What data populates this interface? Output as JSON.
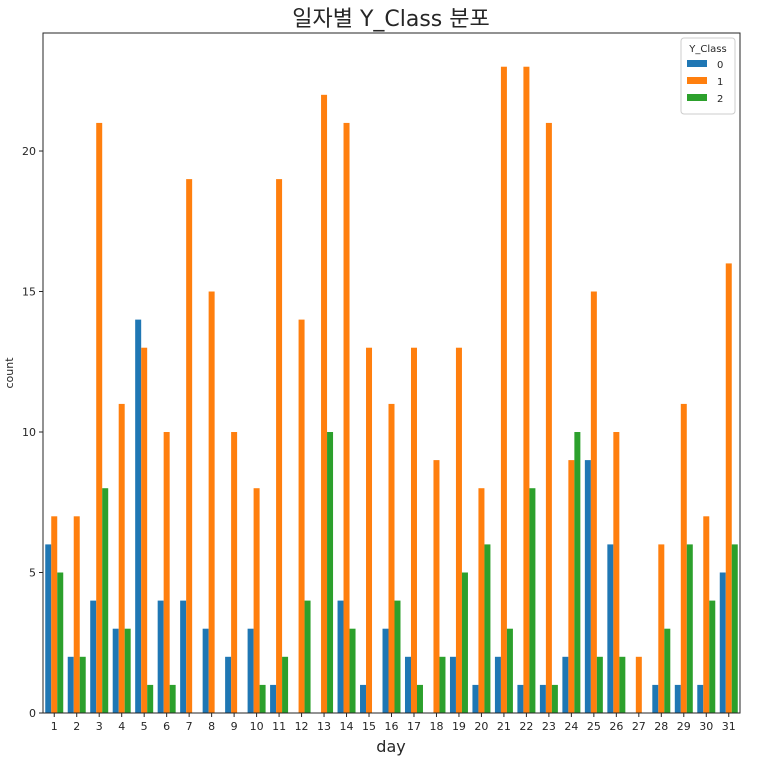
{
  "chart_data": {
    "type": "bar",
    "title": "일자별 Y_Class 분포",
    "xlabel": "day",
    "ylabel": "count",
    "ylim": [
      0,
      24.2
    ],
    "yticks": [
      0,
      5,
      10,
      15,
      20
    ],
    "categories": [
      "1",
      "2",
      "3",
      "4",
      "5",
      "6",
      "7",
      "8",
      "9",
      "10",
      "11",
      "12",
      "13",
      "14",
      "15",
      "16",
      "17",
      "18",
      "19",
      "20",
      "21",
      "22",
      "23",
      "24",
      "25",
      "26",
      "27",
      "28",
      "29",
      "30",
      "31"
    ],
    "legend": {
      "title": "Y_Class",
      "position": "top-right"
    },
    "grid": false,
    "series": [
      {
        "name": "0",
        "color": "#1f77b4",
        "values": [
          6,
          2,
          4,
          3,
          14,
          4,
          4,
          3,
          2,
          3,
          1,
          0,
          0,
          4,
          1,
          3,
          2,
          0,
          2,
          1,
          2,
          1,
          1,
          2,
          9,
          6,
          0,
          1,
          1,
          1,
          5
        ]
      },
      {
        "name": "1",
        "color": "#ff7f0e",
        "values": [
          7,
          7,
          21,
          11,
          13,
          10,
          19,
          15,
          10,
          8,
          19,
          14,
          22,
          21,
          13,
          11,
          13,
          9,
          13,
          8,
          23,
          23,
          21,
          9,
          15,
          10,
          2,
          6,
          11,
          7,
          16
        ]
      },
      {
        "name": "2",
        "color": "#2ca02c",
        "values": [
          5,
          2,
          8,
          3,
          1,
          1,
          0,
          0,
          0,
          1,
          2,
          4,
          10,
          3,
          0,
          4,
          1,
          2,
          5,
          6,
          3,
          8,
          1,
          10,
          2,
          2,
          0,
          3,
          6,
          4,
          6
        ]
      }
    ]
  }
}
